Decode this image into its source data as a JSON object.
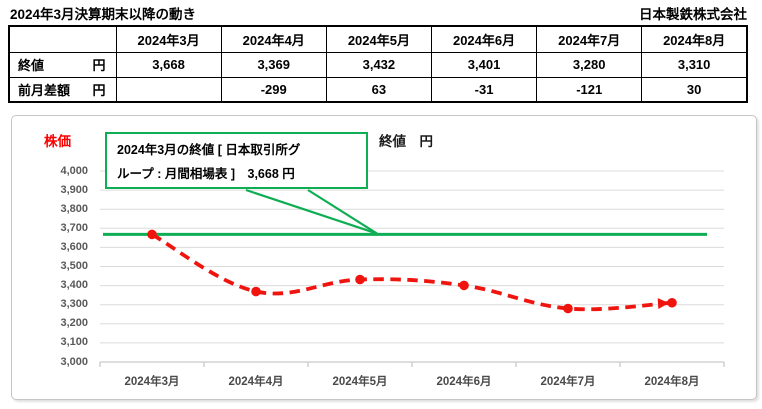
{
  "header": {
    "title": "2024年3月決算期末以降の動き",
    "company": "日本製鉄株式会社"
  },
  "table": {
    "corner": "",
    "columns": [
      "2024年3月",
      "2024年4月",
      "2024年5月",
      "2024年6月",
      "2024年7月",
      "2024年8月"
    ],
    "rows": [
      {
        "label": "終値",
        "unit": "円",
        "cells": [
          "3,668",
          "3,369",
          "3,432",
          "3,401",
          "3,280",
          "3,310"
        ]
      },
      {
        "label": "前月差額",
        "unit": "円",
        "cells": [
          "",
          "-299",
          "63",
          "-31",
          "-121",
          "30"
        ]
      }
    ],
    "negative_color": "#ff0000"
  },
  "chart_data": {
    "type": "line",
    "title": "終値　円",
    "ylabel": "株価",
    "xlabel": "",
    "categories": [
      "2024年3月",
      "2024年4月",
      "2024年5月",
      "2024年6月",
      "2024年7月",
      "2024年8月"
    ],
    "series": [
      {
        "name": "終値",
        "values": [
          3668,
          3369,
          3432,
          3401,
          3280,
          3310
        ],
        "color": "#f0140e",
        "line_style": "dashed",
        "marker": "circle",
        "end_arrow": true
      },
      {
        "name": "2024年3月の終値 基準線",
        "values": [
          3668,
          3668,
          3668,
          3668,
          3668,
          3668
        ],
        "color": "#0fae54",
        "line_style": "solid",
        "marker": "none"
      }
    ],
    "ylim": [
      3000,
      4000
    ],
    "ytick_step": 100,
    "grid": true,
    "legend": "none",
    "annotation": {
      "lines": [
        "2024年3月の終値 [ 日本取引所グ",
        "ループ : 月間相場表 ]　3,668 円"
      ],
      "border_color": "#0fae54"
    }
  }
}
